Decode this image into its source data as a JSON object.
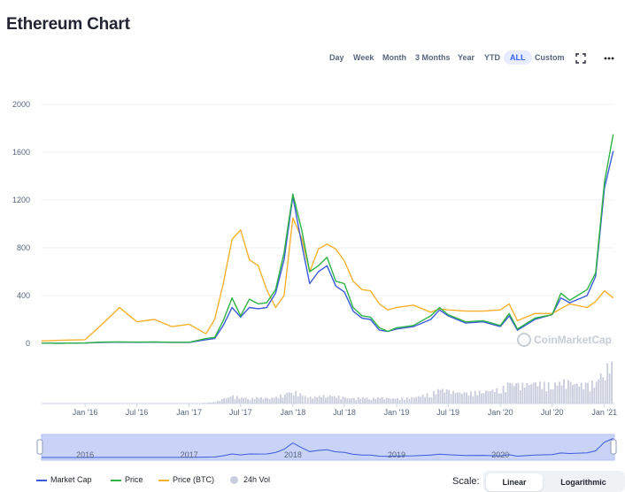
{
  "page": {
    "title": "Ethereum Chart"
  },
  "toolbar": {
    "ranges": [
      "Day",
      "Week",
      "Month",
      "3 Months",
      "Year",
      "YTD",
      "ALL",
      "Custom"
    ],
    "active_range": "ALL",
    "fullscreen_icon": "expand-icon",
    "more_icon": "more-horizontal-icon"
  },
  "watermark": "CoinMarketCap",
  "colors": {
    "market_cap": "#3b5bdb",
    "price": "#2fb344",
    "price_btc": "#f5b12c",
    "volume": "#c8ccdc",
    "accent": "#3861fb"
  },
  "chart_data": {
    "type": "line",
    "ylim": [
      0,
      2000
    ],
    "y_ticks": [
      "2000",
      "1600",
      "1200",
      "800",
      "400",
      "0"
    ],
    "x_ticks": [
      "Jan '16",
      "Jul '16",
      "Jan '17",
      "Jul '17",
      "Jan '18",
      "Jul '18",
      "Jan '19",
      "Jul '19",
      "Jan '20",
      "Jul '20",
      "Jan '21"
    ],
    "navigator_ticks": [
      "2016",
      "2017",
      "2018",
      "2019",
      "2020"
    ],
    "x": [
      "2015-08",
      "2015-10",
      "2016-01",
      "2016-03",
      "2016-05",
      "2016-07",
      "2016-09",
      "2016-11",
      "2017-01",
      "2017-03",
      "2017-04",
      "2017-05",
      "2017-06",
      "2017-07",
      "2017-08",
      "2017-09",
      "2017-10",
      "2017-11",
      "2017-12",
      "2018-01",
      "2018-02",
      "2018-03",
      "2018-04",
      "2018-05",
      "2018-06",
      "2018-07",
      "2018-08",
      "2018-09",
      "2018-10",
      "2018-11",
      "2018-12",
      "2019-01",
      "2019-03",
      "2019-05",
      "2019-06",
      "2019-07",
      "2019-09",
      "2019-11",
      "2020-01",
      "2020-02",
      "2020-03",
      "2020-05",
      "2020-07",
      "2020-08",
      "2020-09",
      "2020-11",
      "2020-12",
      "2021-01",
      "2021-02"
    ],
    "series": [
      {
        "name": "Market Cap",
        "values": [
          2,
          1,
          3,
          8,
          10,
          9,
          10,
          8,
          8,
          30,
          40,
          150,
          300,
          220,
          300,
          290,
          300,
          420,
          700,
          1230,
          830,
          500,
          600,
          650,
          480,
          430,
          270,
          210,
          200,
          110,
          100,
          120,
          140,
          200,
          280,
          230,
          170,
          180,
          140,
          230,
          110,
          200,
          240,
          380,
          340,
          400,
          560,
          1300,
          1610
        ]
      },
      {
        "name": "Price",
        "values": [
          2,
          1,
          3,
          10,
          12,
          10,
          12,
          9,
          9,
          40,
          50,
          190,
          380,
          230,
          370,
          330,
          340,
          450,
          760,
          1250,
          950,
          600,
          650,
          720,
          520,
          500,
          300,
          230,
          220,
          130,
          100,
          130,
          150,
          230,
          300,
          240,
          180,
          190,
          150,
          250,
          120,
          210,
          240,
          420,
          360,
          450,
          590,
          1350,
          1750
        ]
      },
      {
        "name": "Price (BTC)",
        "values": [
          20,
          25,
          30,
          160,
          300,
          180,
          200,
          140,
          160,
          80,
          200,
          500,
          870,
          950,
          700,
          650,
          450,
          300,
          400,
          1050,
          880,
          600,
          790,
          830,
          790,
          690,
          520,
          450,
          440,
          330,
          280,
          300,
          320,
          260,
          290,
          280,
          270,
          270,
          280,
          330,
          190,
          250,
          250,
          290,
          330,
          300,
          350,
          440,
          380
        ]
      },
      {
        "name": "24h Vol",
        "values": [
          0,
          0,
          0,
          0,
          0,
          0,
          0,
          0,
          0,
          0.02,
          0.04,
          0.12,
          0.18,
          0.15,
          0.12,
          0.15,
          0.12,
          0.15,
          0.25,
          0.3,
          0.2,
          0.15,
          0.18,
          0.2,
          0.18,
          0.14,
          0.12,
          0.15,
          0.12,
          0.15,
          0.12,
          0.12,
          0.15,
          0.25,
          0.35,
          0.3,
          0.25,
          0.3,
          0.35,
          0.5,
          0.45,
          0.5,
          0.45,
          0.55,
          0.5,
          0.45,
          0.55,
          0.85,
          1.0
        ]
      }
    ]
  },
  "legend": [
    {
      "label": "Market Cap",
      "kind": "line",
      "color": "#3b5bdb"
    },
    {
      "label": "Price",
      "kind": "line",
      "color": "#2fb344"
    },
    {
      "label": "Price (BTC)",
      "kind": "line",
      "color": "#f5b12c"
    },
    {
      "label": "24h Vol",
      "kind": "dot",
      "color": "#c8ccdc"
    }
  ],
  "scale": {
    "label": "Scale:",
    "options": [
      "Linear",
      "Logarithmic"
    ],
    "active": "Linear"
  }
}
